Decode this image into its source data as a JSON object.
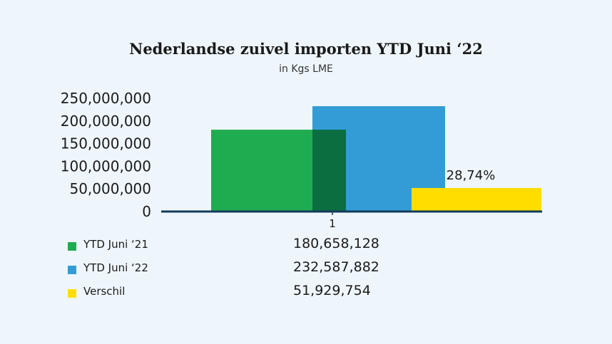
{
  "chart_data": {
    "type": "bar",
    "title": "Nederlandse zuivel importen YTD Juni ‘22",
    "subtitle": "in Kgs LME",
    "categories": [
      "1"
    ],
    "ylim": [
      0,
      250000000
    ],
    "y_ticks": [
      "0",
      "50,000,000",
      "100,000,000",
      "150,000,000",
      "200,000,000",
      "250,000,000"
    ],
    "y_tick_values": [
      0,
      50000000,
      100000000,
      150000000,
      200000000,
      250000000
    ],
    "series": [
      {
        "name": "YTD Juni ‘21",
        "color": "#1fac50",
        "values": [
          180658128
        ],
        "value_text": "180,658,128"
      },
      {
        "name": "YTD Juni ‘22",
        "color": "#339cd6",
        "values": [
          232587882
        ],
        "value_text": "232,587,882"
      },
      {
        "name": "Verschil",
        "color": "#ffdd00",
        "values": [
          51929754
        ],
        "value_text": "51,929,754",
        "data_label": "28,74%"
      }
    ],
    "overlap_color": "#0a6e40",
    "axis_color": "#123a5a",
    "grid": false,
    "legend_placement": "bottom-table"
  }
}
